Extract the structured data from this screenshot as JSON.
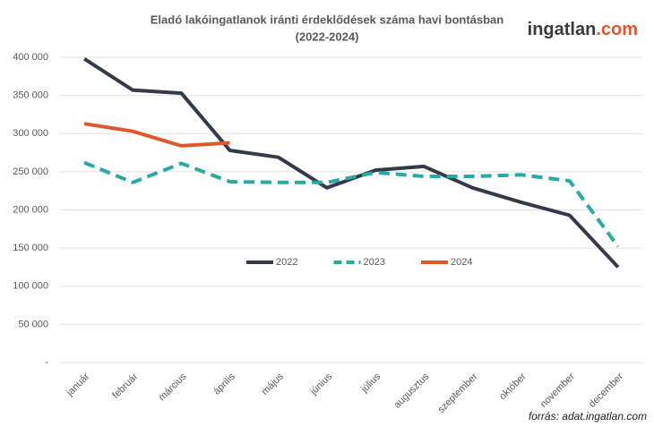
{
  "chart_data": {
    "type": "line",
    "title": [
      "Eladó lakóingatlanok iránti érdeklődések száma havi bontásban",
      "(2022-2024)"
    ],
    "logo": {
      "name": "ingatlan",
      "suffix": ".com"
    },
    "source": "forrás: adat.ingatlan.com",
    "categories": [
      "január",
      "február",
      "március",
      "április",
      "május",
      "június",
      "július",
      "augusztus",
      "szeptember",
      "október",
      "november",
      "december"
    ],
    "series": [
      {
        "name": "2022",
        "color": "#343a4a",
        "style": "solid",
        "values": [
          398000,
          357000,
          353000,
          278000,
          269000,
          229000,
          252000,
          257000,
          229000,
          210000,
          193000,
          125000
        ]
      },
      {
        "name": "2023",
        "color": "#2aa9a3",
        "style": "dashed",
        "values": [
          262000,
          236000,
          261000,
          237000,
          236000,
          236000,
          249000,
          244000,
          244000,
          246000,
          238000,
          152000
        ]
      },
      {
        "name": "2024",
        "color": "#e0572b",
        "style": "solid",
        "values": [
          313000,
          303000,
          284000,
          288000,
          null,
          null,
          null,
          null,
          null,
          null,
          null,
          null
        ]
      }
    ],
    "ylim": [
      0,
      400000
    ],
    "yticks": [
      {
        "value": 0,
        "label": "-"
      },
      {
        "value": 50000,
        "label": "50 000"
      },
      {
        "value": 100000,
        "label": "100 000"
      },
      {
        "value": 150000,
        "label": "150 000"
      },
      {
        "value": 200000,
        "label": "200 000"
      },
      {
        "value": 250000,
        "label": "250 000"
      },
      {
        "value": 300000,
        "label": "300 000"
      },
      {
        "value": 350000,
        "label": "350 000"
      },
      {
        "value": 400000,
        "label": "400 000"
      }
    ],
    "grid": true,
    "legend": "center"
  }
}
